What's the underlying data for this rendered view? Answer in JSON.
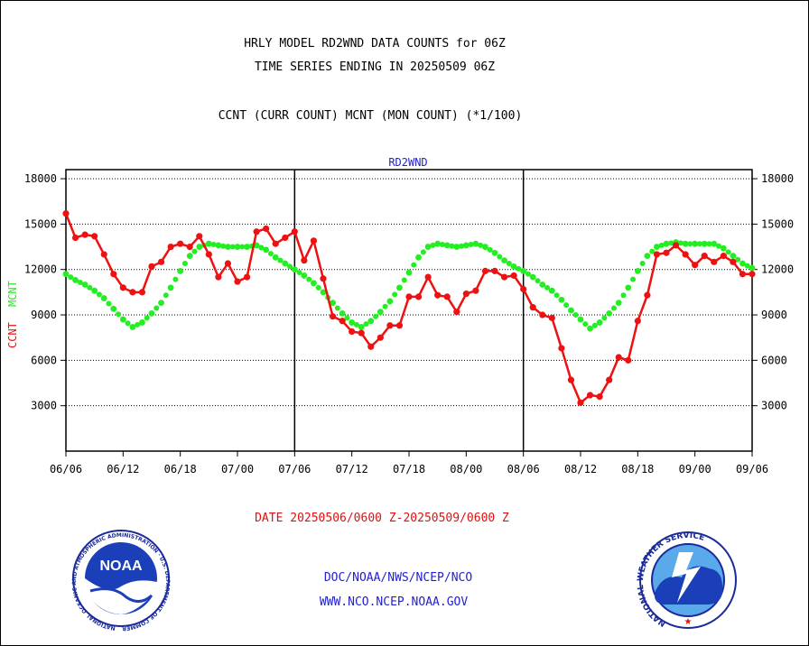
{
  "header": {
    "title_line1": "HRLY MODEL RD2WND DATA COUNTS for 06Z",
    "title_line2": "TIME SERIES ENDING IN 20250509 06Z",
    "subtitle": "CCNT (CURR COUNT) MCNT (MON COUNT) (*1/100)"
  },
  "footer": {
    "date_range": "DATE 20250506/0600 Z-20250509/0600 Z",
    "org": "DOC/NOAA/NWS/NCEP/NCO",
    "url": "WWW.NCO.NCEP.NOAA.GOV"
  },
  "logos": {
    "noaa": {
      "text": "NOAA",
      "ring_text": "NATIONAL OCEANIC AND ATMOSPHERIC ADMINISTRATION · U.S. DEPARTMENT OF COMMERCE"
    },
    "nws": {
      "ring_text": "NATIONAL WEATHER SERVICE"
    }
  },
  "colors": {
    "ccnt": "#ee1111",
    "mcnt": "#22ee22",
    "plot_title": "#2222cc",
    "footer_blue": "#2222cc",
    "footer_red": "#dd1111"
  },
  "chart_data": {
    "type": "line",
    "title": "RD2WND",
    "ylabel_ccnt": "CCNT",
    "ylabel_mcnt": "MCNT",
    "ylim": [
      0,
      18600
    ],
    "yticks": [
      3000,
      6000,
      9000,
      12000,
      15000,
      18000
    ],
    "ytick_labels": [
      "3000",
      "6000",
      "9000",
      "12000",
      "15000",
      "18000"
    ],
    "xlim": [
      0,
      72
    ],
    "xtick_positions": [
      0,
      6,
      12,
      18,
      24,
      30,
      36,
      42,
      48,
      54,
      60,
      66,
      72
    ],
    "xtick_labels": [
      "06/06",
      "06/12",
      "06/18",
      "07/00",
      "07/06",
      "07/12",
      "07/18",
      "08/00",
      "08/06",
      "08/12",
      "08/18",
      "09/00",
      "09/06"
    ],
    "day_lines": [
      24,
      48
    ],
    "grid": true,
    "series": [
      {
        "name": "CCNT",
        "style": "solid",
        "values": [
          15700,
          14100,
          14300,
          14200,
          13000,
          11700,
          10800,
          10500,
          10500,
          12200,
          12500,
          13500,
          13700,
          13500,
          14200,
          13000,
          11500,
          12400,
          11200,
          11500,
          14500,
          14700,
          13700,
          14100,
          14500,
          12600,
          13900,
          11400,
          8900,
          8600,
          7900,
          7800,
          6900,
          7500,
          8300,
          8300,
          10200,
          10200,
          11500,
          10300,
          10200,
          9200,
          10400,
          10600,
          11900,
          11900,
          11500,
          11600,
          10700,
          9500,
          9000,
          8800,
          6800,
          4700,
          3200,
          3700,
          3600,
          4700,
          6200,
          6000,
          8600,
          10300,
          13000,
          13100,
          13600,
          13000,
          12300,
          12900,
          12500,
          12900,
          12500,
          11700,
          11700
        ]
      },
      {
        "name": "MCNT",
        "style": "dotted",
        "values": [
          11700,
          11300,
          11000,
          10600,
          10100,
          9400,
          8700,
          8200,
          8500,
          9100,
          9800,
          10800,
          11900,
          12900,
          13500,
          13700,
          13600,
          13500,
          13500,
          13500,
          13600,
          13300,
          12800,
          12400,
          12000,
          11600,
          11100,
          10500,
          9800,
          9100,
          8500,
          8200,
          8600,
          9200,
          9900,
          10800,
          11800,
          12800,
          13500,
          13700,
          13600,
          13500,
          13600,
          13700,
          13500,
          13100,
          12600,
          12200,
          11900,
          11500,
          11000,
          10600,
          10000,
          9300,
          8700,
          8100,
          8500,
          9100,
          9800,
          10800,
          11900,
          12900,
          13500,
          13700,
          13800,
          13700,
          13700,
          13700,
          13700,
          13400,
          12900,
          12400,
          12100
        ]
      }
    ]
  }
}
